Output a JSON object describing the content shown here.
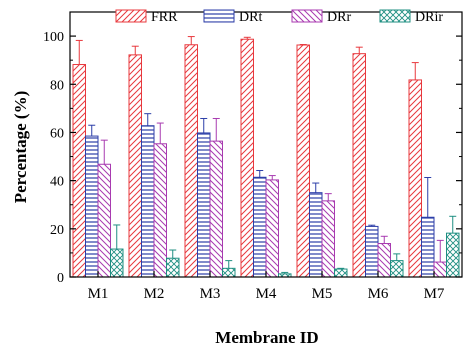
{
  "chart_data": {
    "type": "bar",
    "xlabel": "Membrane ID",
    "ylabel": "Percentage (%)",
    "ylim": [
      0,
      110
    ],
    "yticks": [
      0,
      20,
      40,
      60,
      80,
      100
    ],
    "categories": [
      "M1",
      "M2",
      "M3",
      "M4",
      "M5",
      "M6",
      "M7"
    ],
    "legend_position": "top",
    "grid": false,
    "series": [
      {
        "name": "FRR",
        "color": "#e8383d",
        "pattern": "diagonal-forward",
        "values": [
          88.2,
          92.2,
          96.4,
          98.7,
          96.3,
          92.7,
          81.8
        ],
        "errors": [
          10.0,
          3.6,
          3.4,
          0.8,
          0.2,
          2.7,
          7.2
        ]
      },
      {
        "name": "DRt",
        "color": "#2c3ea8",
        "pattern": "horizontal",
        "values": [
          58.5,
          62.8,
          59.8,
          41.4,
          35.0,
          21.0,
          24.8
        ],
        "errors": [
          4.5,
          5.0,
          6.0,
          2.8,
          4.0,
          0.5,
          16.5
        ]
      },
      {
        "name": "DRr",
        "color": "#a83ab0",
        "pattern": "diagonal-back",
        "values": [
          46.8,
          55.3,
          56.4,
          40.3,
          31.6,
          13.9,
          6.2
        ],
        "errors": [
          10.0,
          8.6,
          9.4,
          1.8,
          3.0,
          3.0,
          9.0
        ]
      },
      {
        "name": "DRir",
        "color": "#1f8f82",
        "pattern": "crosshatch",
        "values": [
          11.6,
          7.8,
          3.6,
          1.3,
          3.3,
          6.8,
          18.2
        ],
        "errors": [
          10.0,
          3.4,
          3.2,
          0.6,
          0.3,
          2.8,
          7.0
        ]
      }
    ]
  }
}
